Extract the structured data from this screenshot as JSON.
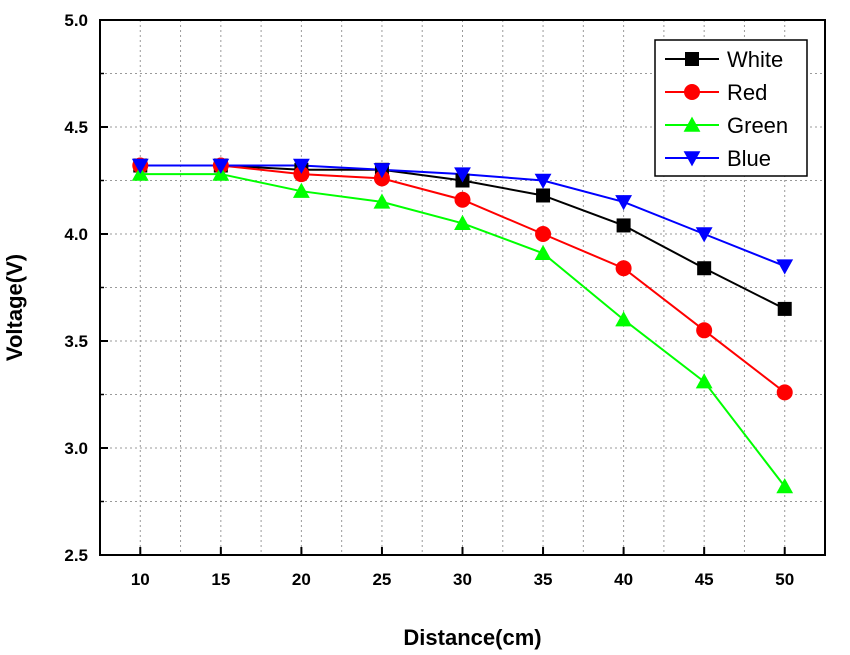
{
  "chart_data": {
    "type": "line",
    "title": "",
    "xlabel": "Distance(cm)",
    "ylabel": "Voltage(V)",
    "x": [
      10,
      15,
      20,
      25,
      30,
      35,
      40,
      45,
      50
    ],
    "xticks": [
      "10",
      "15",
      "20",
      "25",
      "30",
      "35",
      "40",
      "45",
      "50"
    ],
    "xlim": [
      7.5,
      52.5
    ],
    "ylim": [
      2.5,
      5.0
    ],
    "yticks": [
      "2.5",
      "3.0",
      "3.5",
      "4.0",
      "4.5",
      "5.0"
    ],
    "grid": true,
    "legend_position": "top-right",
    "series": [
      {
        "name": "White",
        "color": "#000000",
        "marker": "square",
        "values": [
          4.32,
          4.32,
          4.3,
          4.3,
          4.25,
          4.18,
          4.04,
          3.84,
          3.65
        ]
      },
      {
        "name": "Red",
        "color": "#ff0000",
        "marker": "circle",
        "values": [
          4.32,
          4.32,
          4.28,
          4.26,
          4.16,
          4.0,
          3.84,
          3.55,
          3.26
        ]
      },
      {
        "name": "Green",
        "color": "#00ff00",
        "marker": "triangle-up",
        "values": [
          4.28,
          4.28,
          4.2,
          4.15,
          4.05,
          3.91,
          3.6,
          3.31,
          2.82
        ]
      },
      {
        "name": "Blue",
        "color": "#0000ff",
        "marker": "triangle-down",
        "values": [
          4.32,
          4.32,
          4.32,
          4.3,
          4.28,
          4.25,
          4.15,
          4.0,
          3.85
        ]
      }
    ]
  }
}
